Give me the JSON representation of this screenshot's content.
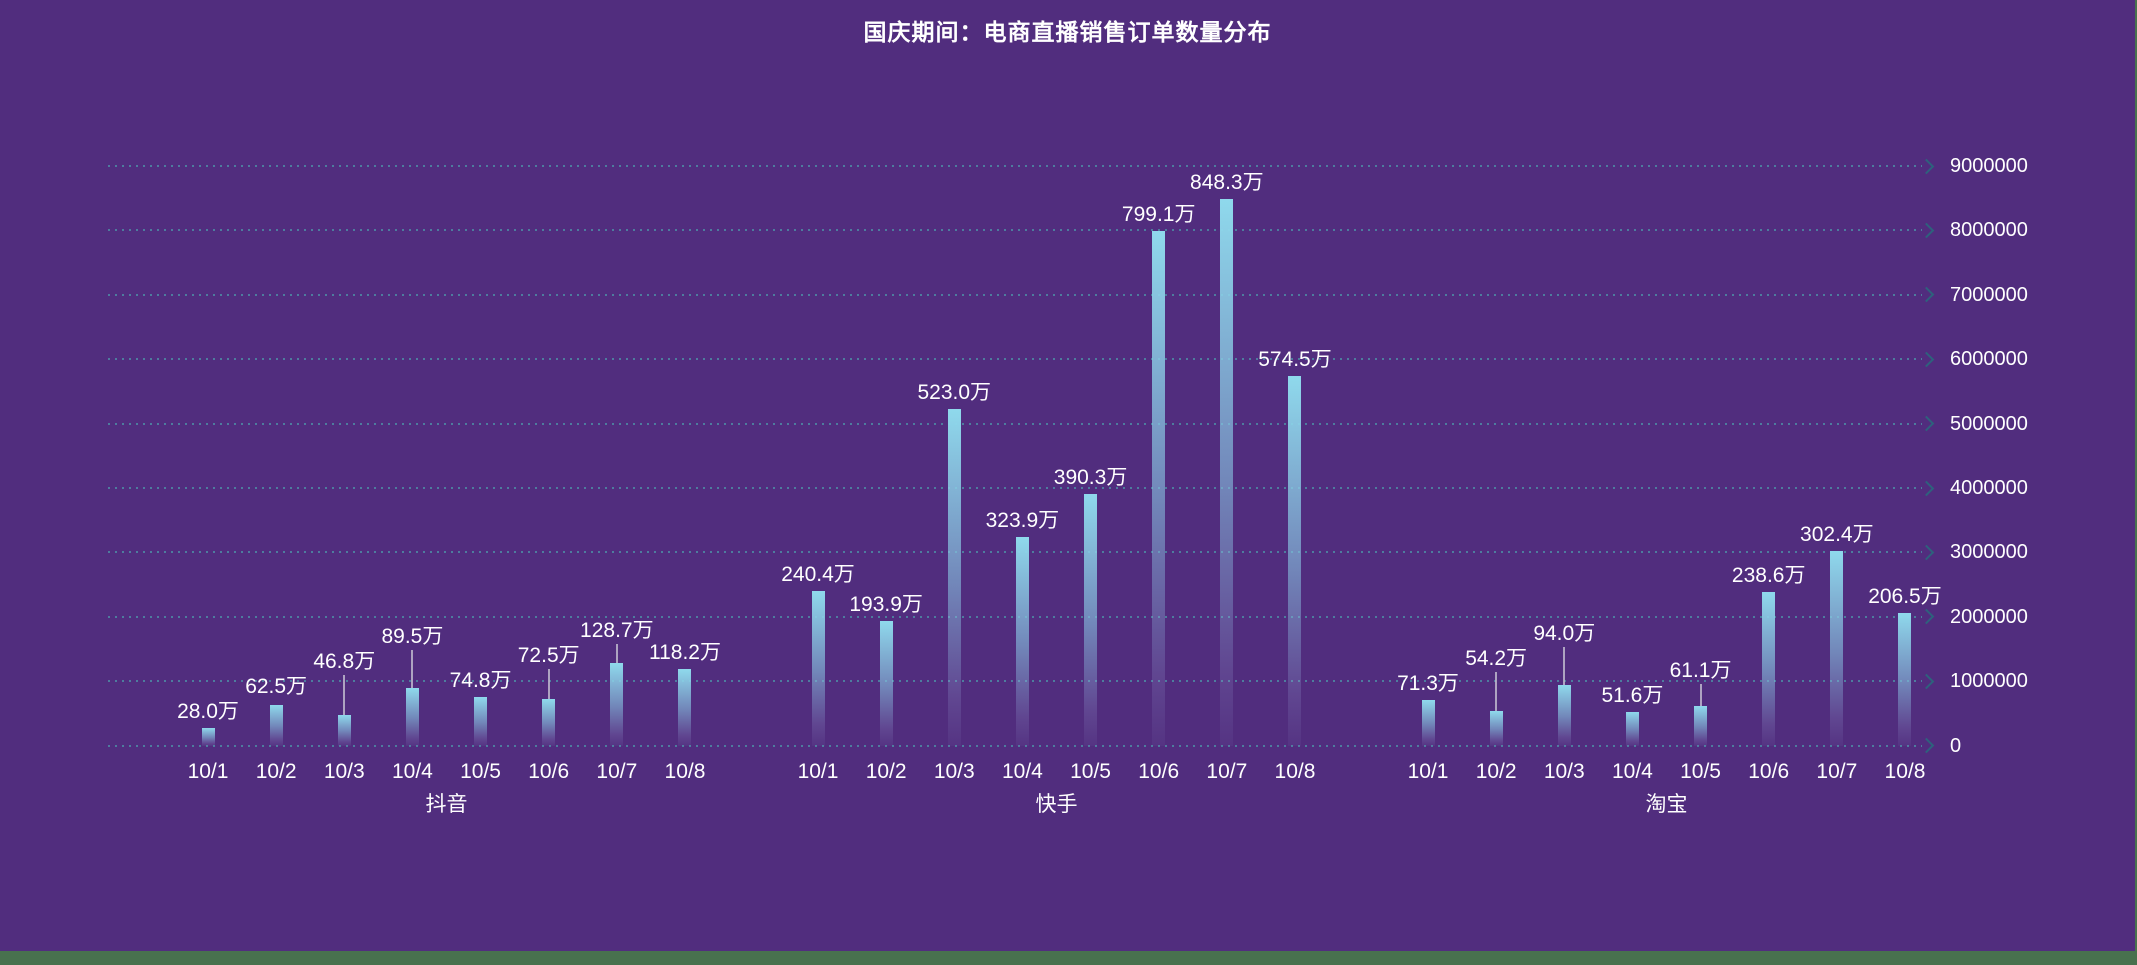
{
  "title": {
    "text": "国庆期间：电商直播销售订单数量分布",
    "color": "#ffffff"
  },
  "y_axis": {
    "tick_labels": [
      "9000000",
      "8000000",
      "7000000",
      "6000000",
      "5000000",
      "4000000",
      "3000000",
      "2000000",
      "1000000",
      "0"
    ],
    "color": "#ffffff"
  },
  "x_axis": {
    "dates": [
      "10/1",
      "10/2",
      "10/3",
      "10/4",
      "10/5",
      "10/6",
      "10/7",
      "10/8"
    ]
  },
  "groups": [
    {
      "name": "抖音",
      "value_labels": [
        "28.0万",
        "62.5万",
        "46.8万",
        "89.5万",
        "74.8万",
        "72.5万",
        "128.7万",
        "118.2万"
      ],
      "values": [
        280000,
        625000,
        468000,
        895000,
        748000,
        725000,
        1287000,
        1182000
      ]
    },
    {
      "name": "快手",
      "value_labels": [
        "240.4万",
        "193.9万",
        "523.0万",
        "323.9万",
        "390.3万",
        "799.1万",
        "848.3万",
        "574.5万"
      ],
      "values": [
        2404000,
        1939000,
        5230000,
        3239000,
        3903000,
        7991000,
        8483000,
        5745000
      ]
    },
    {
      "name": "淘宝",
      "value_labels": [
        "71.3万",
        "54.2万",
        "94.0万",
        "51.6万",
        "61.1万",
        "238.6万",
        "302.4万",
        "206.5万"
      ],
      "values": [
        713000,
        542000,
        940000,
        516000,
        611000,
        2386000,
        3024000,
        2065000
      ]
    }
  ],
  "styles": {
    "background_color": "#512d7e",
    "footer_color": "#48714e",
    "bar_color_top": "#8fd9ec",
    "grid_dot_color": "#4d8aa3",
    "arrow_color": "#2e617d",
    "stem_color": "#beb9cd",
    "text_color": "#ffffff"
  },
  "chart_data": {
    "type": "bar",
    "title": "国庆期间：电商直播销售订单数量分布",
    "categories": [
      "10/1",
      "10/2",
      "10/3",
      "10/4",
      "10/5",
      "10/6",
      "10/7",
      "10/8"
    ],
    "series": [
      {
        "name": "抖音",
        "values": [
          280000,
          625000,
          468000,
          895000,
          748000,
          725000,
          1287000,
          1182000
        ]
      },
      {
        "name": "快手",
        "values": [
          2404000,
          1939000,
          5230000,
          3239000,
          3903000,
          7991000,
          8483000,
          5745000
        ]
      },
      {
        "name": "淘宝",
        "values": [
          713000,
          542000,
          940000,
          516000,
          611000,
          2386000,
          3024000,
          2065000
        ]
      }
    ],
    "value_label_format": "x.x万",
    "xlabel": "",
    "ylabel": "",
    "ylim": [
      0,
      9000000
    ],
    "y_ticks": [
      0,
      1000000,
      2000000,
      3000000,
      4000000,
      5000000,
      6000000,
      7000000,
      8000000,
      9000000
    ],
    "grid": "dotted horizontal lines with right arrowheads, y labels on right",
    "legend_position": "none"
  }
}
